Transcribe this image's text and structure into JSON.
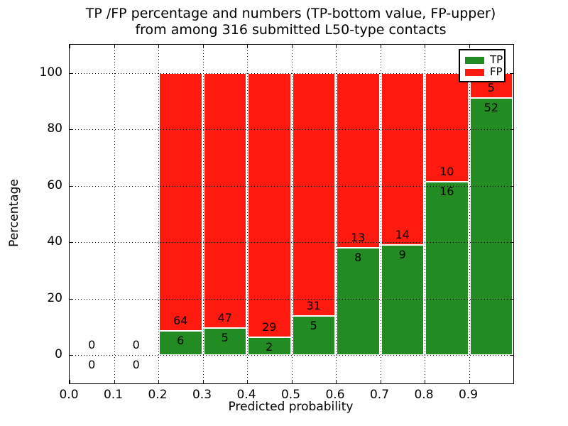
{
  "figure": {
    "title_line1": "TP /FP percentage and numbers (TP-bottom value, FP-upper)",
    "title_line2": "from among 316 submitted L50-type contacts",
    "background_color": "#ffffff"
  },
  "axes": {
    "xlabel": "Predicted probability",
    "ylabel": "Percentage",
    "x_tick_labels": [
      "0.0",
      "0.1",
      "0.2",
      "0.3",
      "0.4",
      "0.5",
      "0.6",
      "0.7",
      "0.8",
      "0.9"
    ],
    "x_tick_values": [
      0.0,
      0.1,
      0.2,
      0.3,
      0.4,
      0.5,
      0.6,
      0.7,
      0.8,
      0.9
    ],
    "y_tick_labels": [
      "0",
      "20",
      "40",
      "60",
      "80",
      "100"
    ],
    "y_tick_values": [
      0,
      20,
      40,
      60,
      80,
      100
    ],
    "xlim": [
      0.0,
      1.0
    ],
    "ylim": [
      -10,
      110
    ],
    "grid": "dotted-black-above-bars"
  },
  "legend": {
    "position": "upper-right",
    "entries": [
      {
        "label": "TP",
        "color": "#228b22"
      },
      {
        "label": "FP",
        "color": "#ff1a10"
      }
    ]
  },
  "chart_data": {
    "type": "bar",
    "stacked": true,
    "normalized_height_pct": 100,
    "title": "TP /FP percentage and numbers (TP-bottom value, FP-upper) from among 316 submitted L50-type contacts",
    "xlabel": "Predicted probability",
    "ylabel": "Percentage",
    "total_submitted": 316,
    "bin_width": 0.1,
    "series_order_bottom_to_top": [
      "TP",
      "FP"
    ],
    "colors": {
      "tp": "#228b22",
      "fp": "#ff1a10",
      "bar_edge": "#ffffff"
    },
    "bins": [
      {
        "x_start": 0.0,
        "x_center": 0.05,
        "tp_count": 0,
        "fp_count": 0,
        "tp_pct": 0,
        "fp_pct": 0
      },
      {
        "x_start": 0.1,
        "x_center": 0.15,
        "tp_count": 0,
        "fp_count": 0,
        "tp_pct": 0,
        "fp_pct": 0
      },
      {
        "x_start": 0.2,
        "x_center": 0.25,
        "tp_count": 6,
        "fp_count": 64,
        "tp_pct": 8.57,
        "fp_pct": 91.43
      },
      {
        "x_start": 0.3,
        "x_center": 0.35,
        "tp_count": 5,
        "fp_count": 47,
        "tp_pct": 9.62,
        "fp_pct": 90.38
      },
      {
        "x_start": 0.4,
        "x_center": 0.45,
        "tp_count": 2,
        "fp_count": 29,
        "tp_pct": 6.45,
        "fp_pct": 93.55
      },
      {
        "x_start": 0.5,
        "x_center": 0.55,
        "tp_count": 5,
        "fp_count": 31,
        "tp_pct": 13.89,
        "fp_pct": 86.11
      },
      {
        "x_start": 0.6,
        "x_center": 0.65,
        "tp_count": 8,
        "fp_count": 13,
        "tp_pct": 38.1,
        "fp_pct": 61.9
      },
      {
        "x_start": 0.7,
        "x_center": 0.75,
        "tp_count": 9,
        "fp_count": 14,
        "tp_pct": 39.13,
        "fp_pct": 60.87
      },
      {
        "x_start": 0.8,
        "x_center": 0.85,
        "tp_count": 16,
        "fp_count": 10,
        "tp_pct": 61.54,
        "fp_pct": 38.46
      },
      {
        "x_start": 0.9,
        "x_center": 0.95,
        "tp_count": 52,
        "fp_count": 5,
        "tp_pct": 91.23,
        "fp_pct": 8.77
      }
    ]
  }
}
